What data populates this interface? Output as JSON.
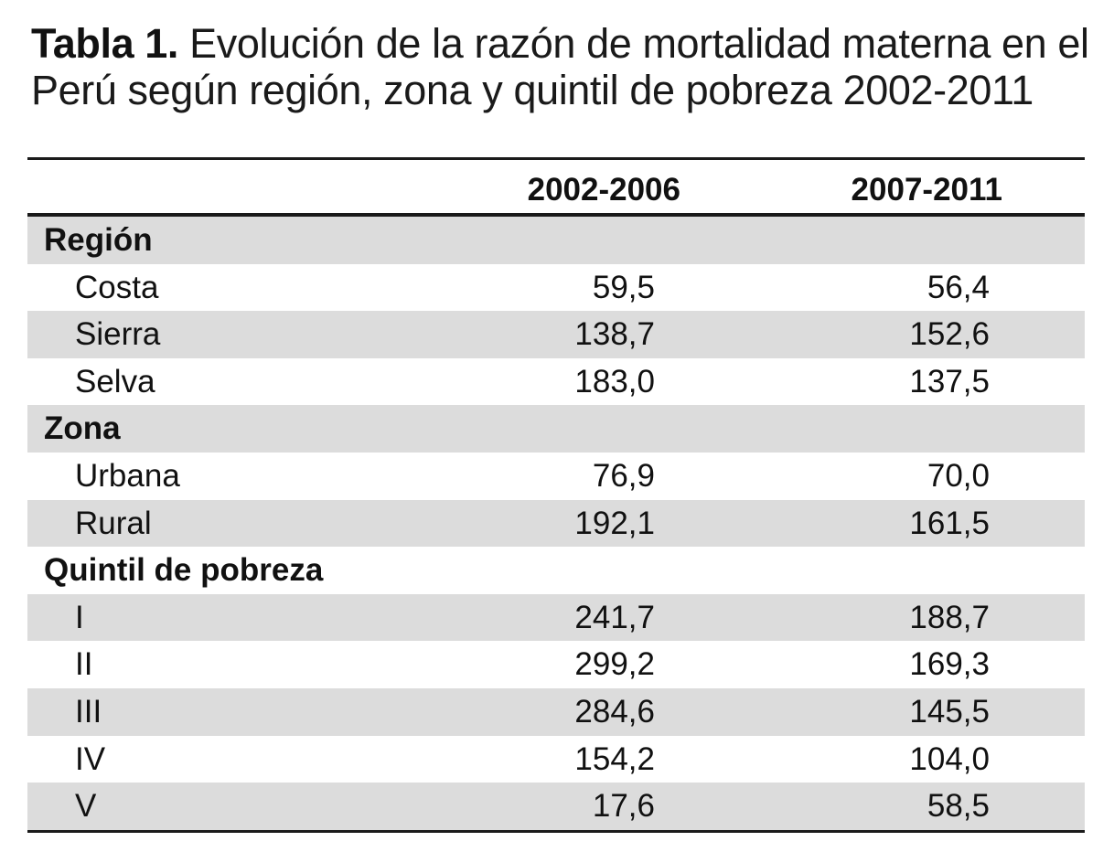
{
  "caption": {
    "label": "Tabla 1.",
    "text": "Evolución de la razón de mortalidad materna en el Perú según región, zona y quintil de pobreza 2002-2011"
  },
  "table": {
    "columns": [
      "",
      "2002-2006",
      "2007-2011"
    ],
    "groups": [
      {
        "label": "Región",
        "rows": [
          {
            "label": "Costa",
            "values": [
              "59,5",
              "56,4"
            ]
          },
          {
            "label": "Sierra",
            "values": [
              "138,7",
              "152,6"
            ]
          },
          {
            "label": "Selva",
            "values": [
              "183,0",
              "137,5"
            ]
          }
        ]
      },
      {
        "label": "Zona",
        "rows": [
          {
            "label": "Urbana",
            "values": [
              "76,9",
              "70,0"
            ]
          },
          {
            "label": "Rural",
            "values": [
              "192,1",
              "161,5"
            ]
          }
        ]
      },
      {
        "label": "Quintil de pobreza",
        "rows": [
          {
            "label": "I",
            "values": [
              "241,7",
              "188,7"
            ]
          },
          {
            "label": "II",
            "values": [
              "299,2",
              "169,3"
            ]
          },
          {
            "label": "III",
            "values": [
              "284,6",
              "145,5"
            ]
          },
          {
            "label": "IV",
            "values": [
              "154,2",
              "104,0"
            ]
          },
          {
            "label": "V",
            "values": [
              "17,6",
              "58,5"
            ]
          }
        ]
      }
    ]
  },
  "colors": {
    "shade": "#dcdcdc",
    "rule": "#1a1a1a"
  }
}
